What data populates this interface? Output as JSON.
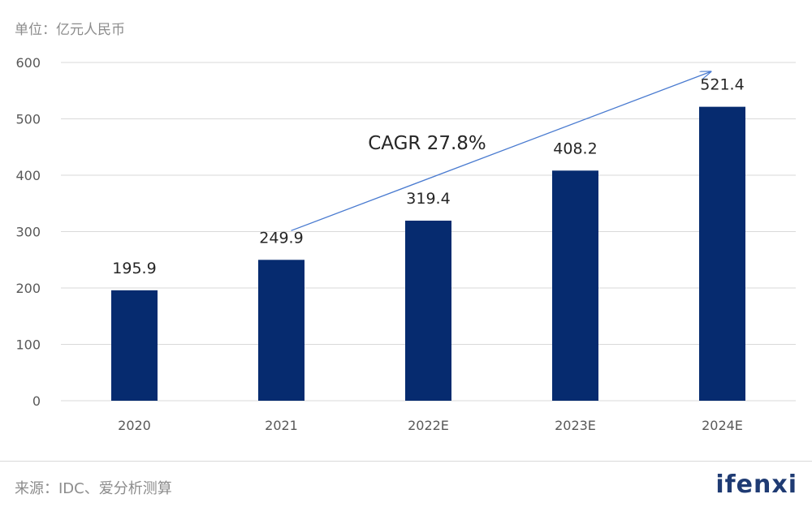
{
  "header": {
    "unit": "单位：亿元人民币"
  },
  "footer": {
    "source": "来源：IDC、爱分析测算",
    "brand": "ifenxi"
  },
  "colors": {
    "bar": "#062b6f",
    "grid": "#d9d9d9",
    "axis_text": "#595959",
    "arrow": "#4a7bd0"
  },
  "chart_data": {
    "type": "bar",
    "categories": [
      "2020",
      "2021",
      "2022E",
      "2023E",
      "2024E"
    ],
    "series": [
      {
        "values": [
          195.9,
          249.9,
          319.4,
          408.2,
          521.4
        ],
        "data_labels": [
          "195.9",
          "249.9",
          "319.4",
          "408.2",
          "521.4"
        ]
      }
    ],
    "ylim": [
      0,
      600
    ],
    "yticks": [
      0,
      100,
      200,
      300,
      400,
      500,
      600
    ],
    "grid": true,
    "annotations": [
      {
        "text": "CAGR 27.8%",
        "type": "arrow",
        "from_category": "2021",
        "to_category": "2024E"
      }
    ]
  }
}
